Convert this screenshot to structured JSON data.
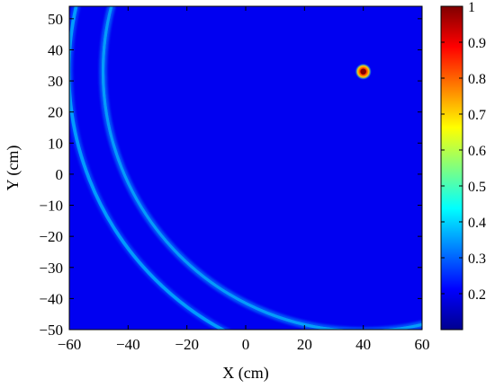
{
  "chart_data": {
    "type": "heatmap",
    "xlabel": "X (cm)",
    "ylabel": "Y (cm)",
    "xlim": [
      -60,
      60
    ],
    "ylim": [
      -50,
      54
    ],
    "xticks": [
      -60,
      -40,
      -20,
      0,
      20,
      40,
      60
    ],
    "yticks": [
      -50,
      -40,
      -30,
      -20,
      -10,
      0,
      10,
      20,
      30,
      40,
      50
    ],
    "colorbar": {
      "range": [
        0.1,
        1.0
      ],
      "ticks": [
        0.2,
        0.3,
        0.4,
        0.5,
        0.6,
        0.7,
        0.8,
        0.9,
        1
      ]
    },
    "colormap": "jet",
    "background_value": 0.2,
    "peak": {
      "x": 40,
      "y": 33,
      "value": 1.0
    },
    "arcs": [
      {
        "center": [
          40,
          33
        ],
        "via": [
          -60,
          30
        ],
        "value": 0.45
      },
      {
        "center": [
          40,
          33
        ],
        "via": [
          -60,
          26
        ],
        "value": 0.35
      },
      {
        "center": [
          40,
          33
        ],
        "via": [
          50,
          -50
        ],
        "value": 0.55
      },
      {
        "center": [
          40,
          33
        ],
        "via": [
          30,
          -50
        ],
        "value": 0.35
      }
    ]
  }
}
